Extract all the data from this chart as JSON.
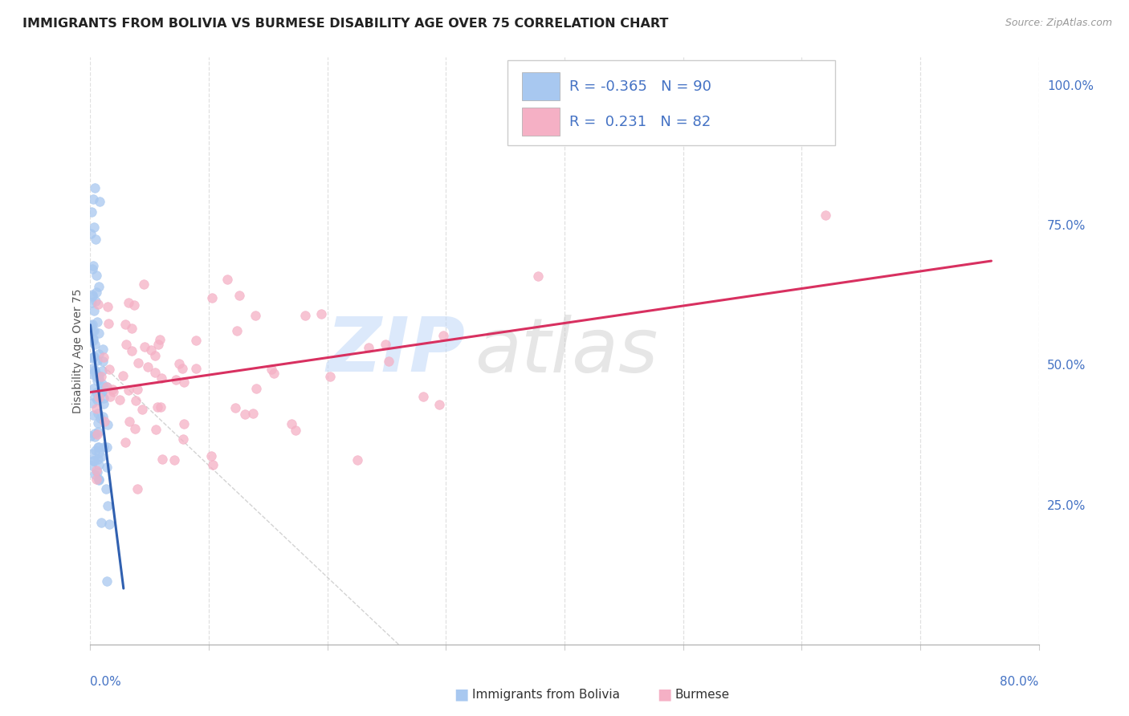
{
  "title": "IMMIGRANTS FROM BOLIVIA VS BURMESE DISABILITY AGE OVER 75 CORRELATION CHART",
  "source": "Source: ZipAtlas.com",
  "ylabel": "Disability Age Over 75",
  "color_bolivia": "#a8c8f0",
  "color_burmese": "#f5b0c5",
  "trend_color_bolivia": "#3060b0",
  "trend_color_burmese": "#d83060",
  "ref_line_color": "#c8c8c8",
  "watermark_zip_color": "#c0d8f8",
  "watermark_atlas_color": "#c8c8c8",
  "R_bolivia": -0.365,
  "N_bolivia": 90,
  "R_burmese": 0.231,
  "N_burmese": 82,
  "xmin": 0.0,
  "xmax": 0.8,
  "ymin": 0.0,
  "ymax": 1.05,
  "right_ytick_color": "#4472c4",
  "bottom_xtick_color": "#4472c4",
  "background_color": "#ffffff",
  "grid_color": "#e0e0e0",
  "grid_style": "--",
  "title_color": "#222222",
  "source_color": "#999999",
  "legend_text_color": "#4472c4",
  "legend_label_color": "#333333"
}
